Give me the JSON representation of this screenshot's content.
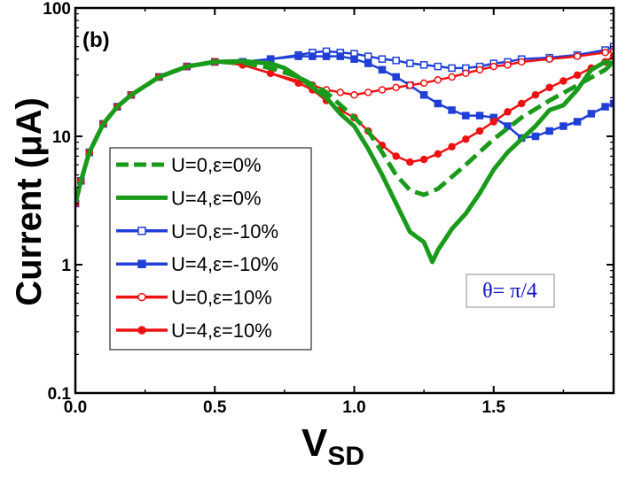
{
  "chart_data": {
    "type": "line",
    "panel_label": "(b)",
    "xlabel": "V",
    "xlabel_sub": "SD",
    "ylabel": "Current (μA)",
    "x_ticks": [
      "0.0",
      "0.5",
      "1.0",
      "1.5"
    ],
    "x_tick_values": [
      0,
      0.5,
      1.0,
      1.5
    ],
    "y_ticks": [
      "0.1",
      "1",
      "10",
      "100"
    ],
    "y_tick_values": [
      0.1,
      1,
      10,
      100
    ],
    "xlim": [
      0,
      1.93
    ],
    "ylim": [
      0.1,
      100
    ],
    "y_scale": "log",
    "grid": false,
    "legend_position": "left",
    "annotation": "θ= π/4",
    "series": [
      {
        "name": "U=0,ε=0%",
        "color": "#1a9a1a",
        "style": "dashed",
        "marker": "none",
        "x": [
          0.0,
          0.02,
          0.05,
          0.1,
          0.15,
          0.2,
          0.3,
          0.4,
          0.5,
          0.6,
          0.7,
          0.8,
          0.9,
          1.0,
          1.05,
          1.1,
          1.15,
          1.2,
          1.25,
          1.3,
          1.4,
          1.5,
          1.6,
          1.7,
          1.8,
          1.9,
          1.93
        ],
        "y": [
          3.0,
          4.5,
          7.5,
          12.5,
          17,
          21,
          29,
          35,
          38,
          37.5,
          34,
          29,
          22,
          14,
          11,
          7.5,
          5,
          3.8,
          3.5,
          3.9,
          6,
          9.5,
          14,
          19,
          25,
          33,
          38
        ]
      },
      {
        "name": "U=4,ε=0%",
        "color": "#1a9a1a",
        "style": "solid",
        "marker": "none",
        "x": [
          0.0,
          0.02,
          0.05,
          0.1,
          0.15,
          0.2,
          0.3,
          0.4,
          0.5,
          0.6,
          0.7,
          0.75,
          0.8,
          0.9,
          0.95,
          1.0,
          1.05,
          1.1,
          1.15,
          1.2,
          1.25,
          1.28,
          1.3,
          1.35,
          1.4,
          1.45,
          1.5,
          1.55,
          1.6,
          1.65,
          1.7,
          1.75,
          1.8,
          1.85,
          1.9,
          1.93
        ],
        "y": [
          3.0,
          4.5,
          7.5,
          12.5,
          17,
          21,
          29,
          35,
          38,
          38.5,
          37,
          34,
          29,
          20,
          15,
          12,
          8,
          5,
          3,
          1.8,
          1.5,
          1.05,
          1.3,
          1.9,
          2.5,
          3.6,
          5.5,
          7.5,
          9.5,
          12,
          16,
          17.5,
          23,
          33,
          38,
          37
        ]
      },
      {
        "name": "U=0,ε=-10%",
        "color": "#1f3fd6",
        "style": "solid",
        "marker": "open-square",
        "x": [
          0.0,
          0.02,
          0.05,
          0.1,
          0.15,
          0.2,
          0.3,
          0.4,
          0.5,
          0.6,
          0.7,
          0.8,
          0.85,
          0.9,
          0.95,
          1.0,
          1.05,
          1.1,
          1.15,
          1.2,
          1.25,
          1.3,
          1.35,
          1.4,
          1.45,
          1.5,
          1.55,
          1.6,
          1.7,
          1.8,
          1.9,
          1.93
        ],
        "y": [
          3.0,
          4.5,
          7.5,
          12.5,
          17,
          21,
          29,
          35,
          38,
          38,
          40,
          43,
          45,
          46,
          45,
          44,
          42,
          40,
          39,
          37,
          36,
          35,
          34,
          34,
          35,
          37,
          38,
          40,
          41,
          43,
          47,
          50
        ]
      },
      {
        "name": "U=4,ε=-10%",
        "color": "#1f3fd6",
        "style": "solid",
        "marker": "filled-square",
        "x": [
          0.0,
          0.02,
          0.05,
          0.1,
          0.15,
          0.2,
          0.3,
          0.4,
          0.5,
          0.6,
          0.7,
          0.8,
          0.85,
          0.9,
          0.95,
          1.0,
          1.05,
          1.1,
          1.15,
          1.2,
          1.25,
          1.3,
          1.35,
          1.4,
          1.45,
          1.5,
          1.55,
          1.6,
          1.65,
          1.7,
          1.75,
          1.8,
          1.85,
          1.9,
          1.93
        ],
        "y": [
          3.0,
          4.5,
          7.5,
          12.5,
          17,
          21,
          29,
          35,
          38,
          38,
          40,
          42,
          42,
          42,
          42,
          40,
          37,
          33,
          29,
          25,
          21,
          18,
          16,
          14.5,
          14.5,
          14,
          12,
          9.7,
          10,
          11,
          12,
          13,
          15,
          17,
          18
        ]
      },
      {
        "name": "U=0,ε=10%",
        "color": "#ee1111",
        "style": "solid",
        "marker": "open-circle",
        "x": [
          0.0,
          0.02,
          0.05,
          0.1,
          0.15,
          0.2,
          0.3,
          0.4,
          0.5,
          0.6,
          0.7,
          0.8,
          0.85,
          0.9,
          0.95,
          1.0,
          1.05,
          1.1,
          1.15,
          1.2,
          1.25,
          1.3,
          1.35,
          1.4,
          1.45,
          1.5,
          1.55,
          1.6,
          1.7,
          1.8,
          1.9,
          1.93
        ],
        "y": [
          3.0,
          4.5,
          7.5,
          12.5,
          17,
          21,
          29,
          35,
          38,
          36,
          31,
          27,
          25,
          23,
          22,
          21,
          22,
          23,
          24,
          25,
          26,
          27.5,
          29,
          31,
          33,
          35,
          36,
          38,
          40,
          42,
          45,
          46
        ]
      },
      {
        "name": "U=4,ε=10%",
        "color": "#ee1111",
        "style": "solid",
        "marker": "filled-circle",
        "x": [
          0.0,
          0.02,
          0.05,
          0.1,
          0.15,
          0.2,
          0.3,
          0.4,
          0.5,
          0.6,
          0.7,
          0.8,
          0.85,
          0.9,
          0.95,
          1.0,
          1.05,
          1.1,
          1.15,
          1.2,
          1.25,
          1.3,
          1.35,
          1.4,
          1.45,
          1.5,
          1.55,
          1.6,
          1.65,
          1.7,
          1.75,
          1.8,
          1.85,
          1.9,
          1.93
        ],
        "y": [
          3.0,
          4.5,
          7.5,
          12.5,
          17,
          21,
          29,
          35,
          38,
          36,
          31,
          26,
          23,
          19,
          16,
          14,
          11,
          8.5,
          7,
          6.3,
          6.6,
          7.3,
          8.3,
          9.5,
          11,
          13,
          15.5,
          18,
          21,
          24,
          27,
          30,
          34,
          38,
          42
        ]
      }
    ]
  }
}
